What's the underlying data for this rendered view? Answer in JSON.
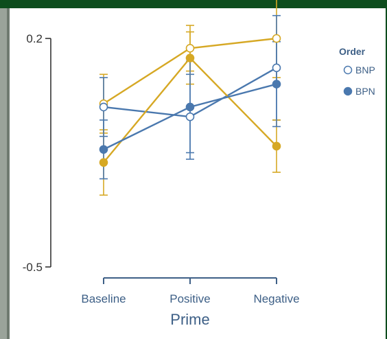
{
  "chart_data": {
    "type": "line",
    "xlabel": "Prime",
    "ylabel": "",
    "categories": [
      "Baseline",
      "Positive",
      "Negative"
    ],
    "ylim": [
      -0.5,
      0.2
    ],
    "yticks": [
      "0.2",
      "-0.5"
    ],
    "grid": false,
    "legend": {
      "title": "Order",
      "placement": "top-right",
      "entries": [
        {
          "label": "BNP",
          "marker": "open-circle"
        },
        {
          "label": "BPN",
          "marker": "filled-circle"
        }
      ]
    },
    "series": [
      {
        "id": "bnp-gold",
        "order": "BNP",
        "color": "#d6a824",
        "filled": false,
        "values": [
          0.0,
          0.17,
          0.2
        ],
        "err": [
          0.09,
          0.07,
          0.12
        ]
      },
      {
        "id": "bnp-blue",
        "order": "BNP",
        "color": "#4a78ae",
        "filled": false,
        "values": [
          -0.01,
          -0.04,
          0.11
        ],
        "err": [
          0.09,
          0.13,
          0.16
        ]
      },
      {
        "id": "bpn-gold",
        "order": "BPN",
        "color": "#d6a824",
        "filled": true,
        "values": [
          -0.18,
          0.14,
          -0.13
        ],
        "err": [
          0.1,
          0.08,
          0.08
        ]
      },
      {
        "id": "bpn-blue",
        "order": "BPN",
        "color": "#4a78ae",
        "filled": true,
        "values": [
          -0.14,
          -0.01,
          0.06
        ],
        "err": [
          0.09,
          0.14,
          0.13
        ]
      }
    ],
    "colors": {
      "gold": "#d6a824",
      "blue": "#4a78ae",
      "axis": "#3d5f86"
    }
  }
}
